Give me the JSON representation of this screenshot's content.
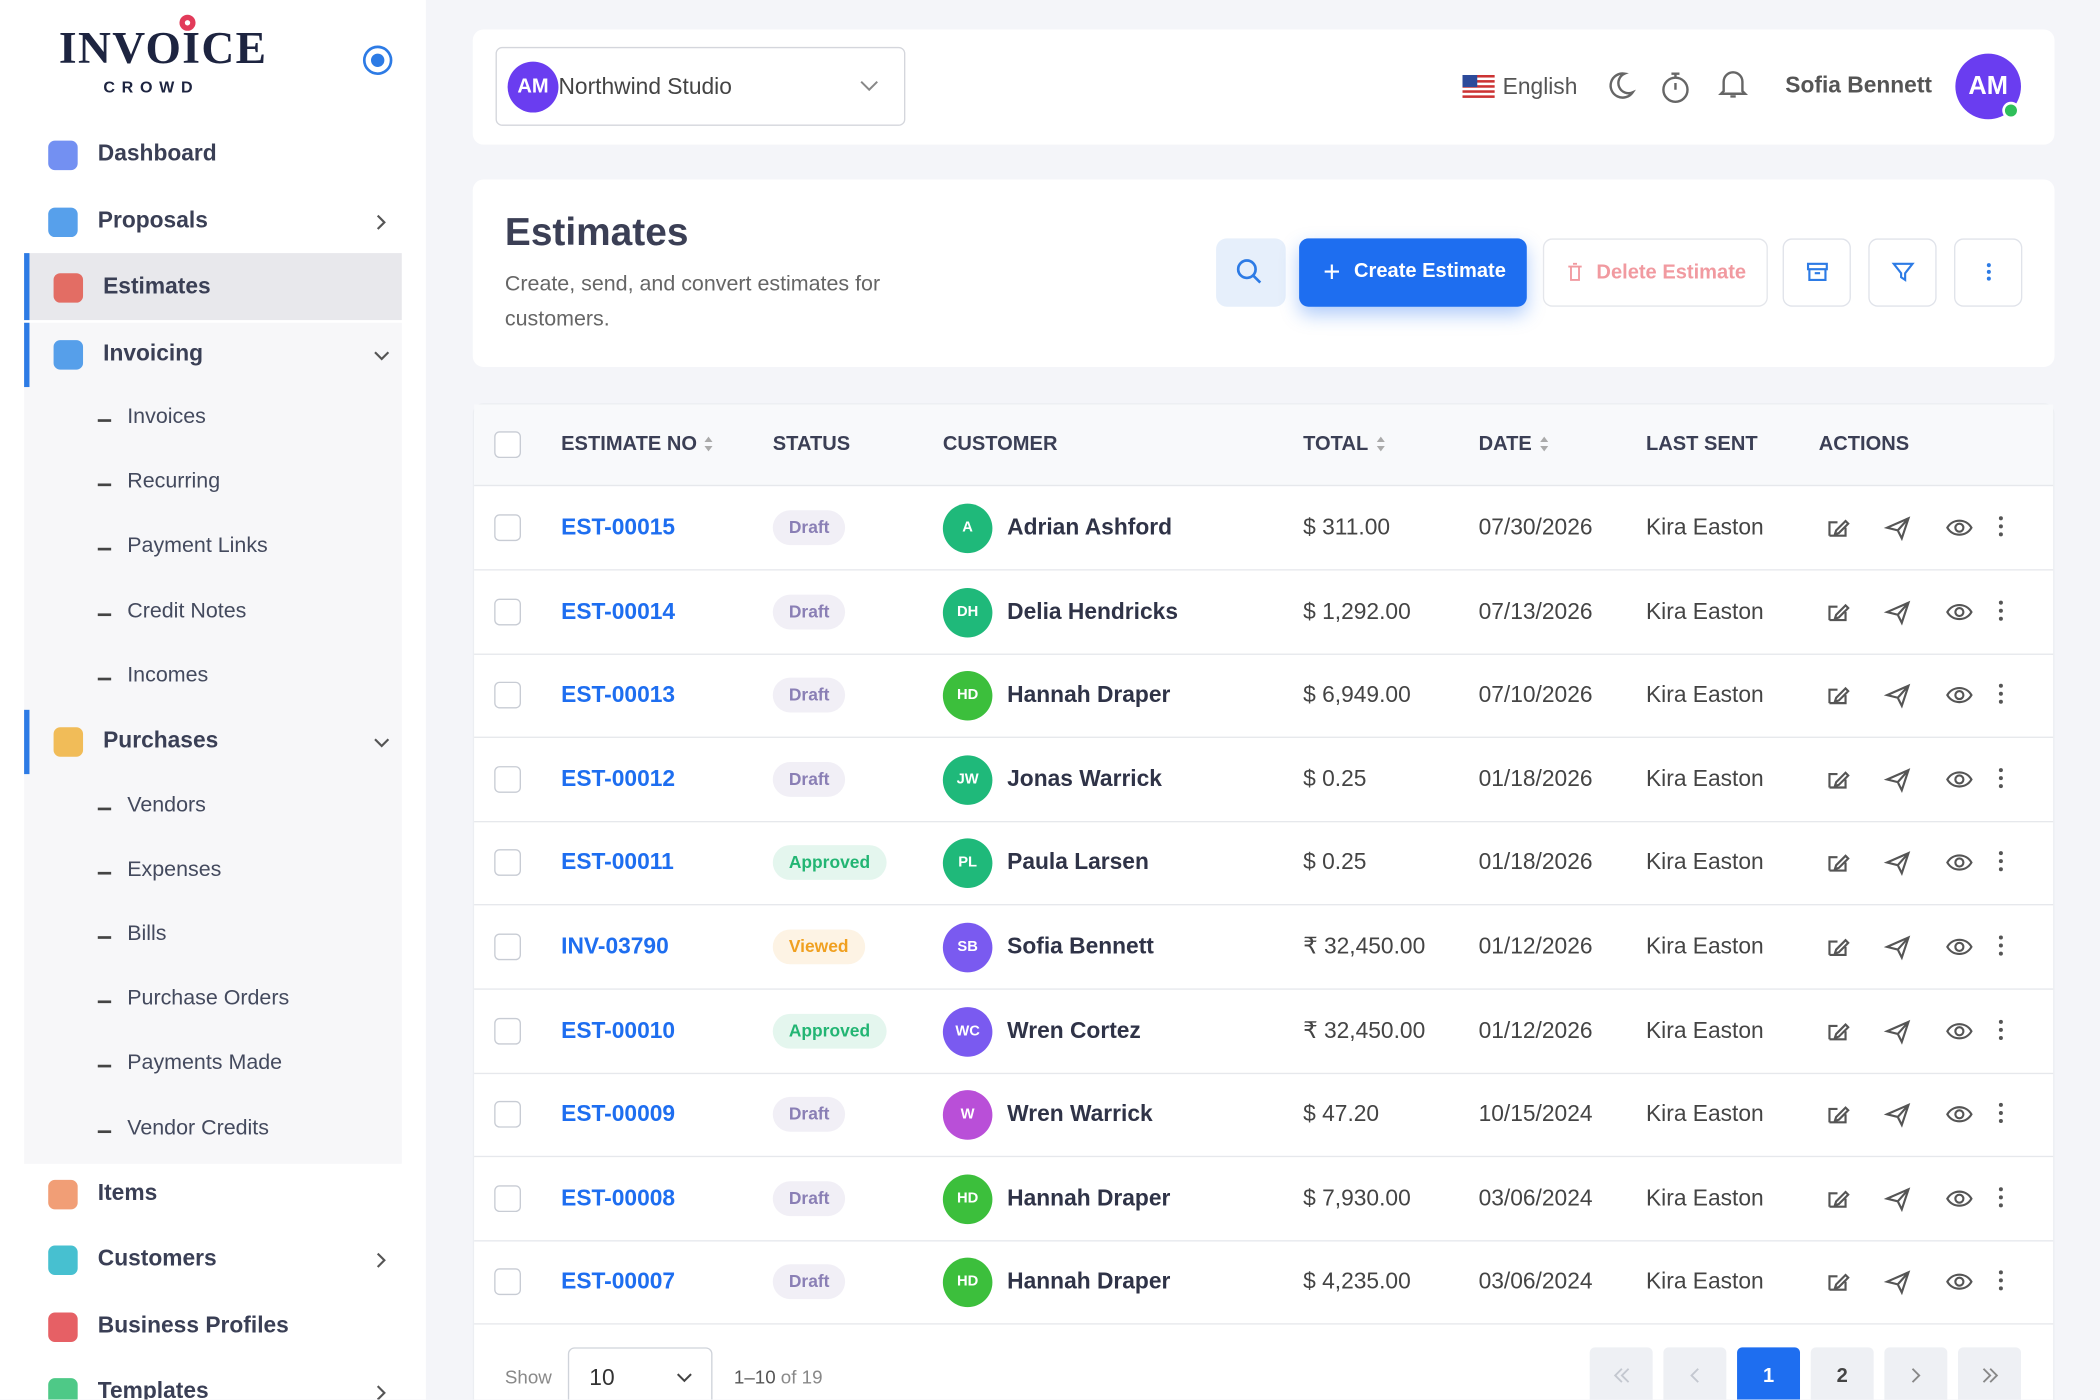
{
  "brand": {
    "name": "INVOICE",
    "tagline": "CROWD"
  },
  "sidebar": {
    "items": [
      {
        "label": "Dashboard",
        "chevron": "none"
      },
      {
        "label": "Proposals",
        "chevron": "right"
      },
      {
        "label": "Estimates",
        "chevron": "none",
        "active": true
      },
      {
        "label": "Invoicing",
        "chevron": "down",
        "children": [
          "Invoices",
          "Recurring",
          "Payment Links",
          "Credit Notes",
          "Incomes"
        ]
      },
      {
        "label": "Purchases",
        "chevron": "down",
        "children": [
          "Vendors",
          "Expenses",
          "Bills",
          "Purchase Orders",
          "Payments Made",
          "Vendor Credits"
        ]
      },
      {
        "label": "Items",
        "chevron": "none"
      },
      {
        "label": "Customers",
        "chevron": "right"
      },
      {
        "label": "Business Profiles",
        "chevron": "none"
      },
      {
        "label": "Templates",
        "chevron": "right"
      }
    ]
  },
  "header": {
    "org_initials": "AM",
    "org_name": "Northwind Studio",
    "language": "English",
    "user_name": "Sofia Bennett",
    "user_initials": "AM"
  },
  "page": {
    "title": "Estimates",
    "subtitle": "Create, send, and convert estimates for customers.",
    "create_button": "Create Estimate",
    "delete_button": "Delete Estimate"
  },
  "table": {
    "columns": [
      "ESTIMATE NO",
      "STATUS",
      "CUSTOMER",
      "TOTAL",
      "DATE",
      "LAST SENT",
      "ACTIONS"
    ],
    "rows": [
      {
        "number": "EST-00015",
        "status": "Draft",
        "status_color": "#8a7fb5",
        "initials": "A",
        "avatar_color": "#1fb97a",
        "customer": "Adrian Ashford",
        "total": "$ 311.00",
        "date": "07/30/2026",
        "last_sent": "Kira Easton"
      },
      {
        "number": "EST-00014",
        "status": "Draft",
        "status_color": "#8a7fb5",
        "initials": "DH",
        "avatar_color": "#1fb97a",
        "customer": "Delia Hendricks",
        "total": "$ 1,292.00",
        "date": "07/13/2026",
        "last_sent": "Kira Easton"
      },
      {
        "number": "EST-00013",
        "status": "Draft",
        "status_color": "#8a7fb5",
        "initials": "HD",
        "avatar_color": "#3cbf3c",
        "customer": "Hannah Draper",
        "total": "$ 6,949.00",
        "date": "07/10/2026",
        "last_sent": "Kira Easton"
      },
      {
        "number": "EST-00012",
        "status": "Draft",
        "status_color": "#8a7fb5",
        "initials": "JW",
        "avatar_color": "#1fb97a",
        "customer": "Jonas Warrick",
        "total": "$ 0.25",
        "date": "01/18/2026",
        "last_sent": "Kira Easton"
      },
      {
        "number": "EST-00011",
        "status": "Approved",
        "status_color": "#22b573",
        "initials": "PL",
        "avatar_color": "#1fb97a",
        "customer": "Paula Larsen",
        "total": "$ 0.25",
        "date": "01/18/2026",
        "last_sent": "Kira Easton"
      },
      {
        "number": "INV-03790",
        "status": "Viewed",
        "status_color": "#f0a020",
        "initials": "SB",
        "avatar_color": "#7a5af0",
        "customer": "Sofia Bennett",
        "total": "₹ 32,450.00",
        "date": "01/12/2026",
        "last_sent": "Kira Easton"
      },
      {
        "number": "EST-00010",
        "status": "Approved",
        "status_color": "#22b573",
        "initials": "WC",
        "avatar_color": "#7a5af0",
        "customer": "Wren Cortez",
        "total": "₹ 32,450.00",
        "date": "01/12/2026",
        "last_sent": "Kira Easton"
      },
      {
        "number": "EST-00009",
        "status": "Draft",
        "status_color": "#8a7fb5",
        "initials": "W",
        "avatar_color": "#b94fd8",
        "customer": "Wren Warrick",
        "total": "$ 47.20",
        "date": "10/15/2024",
        "last_sent": "Kira Easton"
      },
      {
        "number": "EST-00008",
        "status": "Draft",
        "status_color": "#8a7fb5",
        "initials": "HD",
        "avatar_color": "#3cbf3c",
        "customer": "Hannah Draper",
        "total": "$ 7,930.00",
        "date": "03/06/2024",
        "last_sent": "Kira Easton"
      },
      {
        "number": "EST-00007",
        "status": "Draft",
        "status_color": "#8a7fb5",
        "initials": "HD",
        "avatar_color": "#3cbf3c",
        "customer": "Hannah Draper",
        "total": "$ 4,235.00",
        "date": "03/06/2024",
        "last_sent": "Kira Easton"
      }
    ]
  },
  "pagination": {
    "show_label": "Show",
    "page_size": "10",
    "range": "1–10",
    "of": "of 19",
    "pages": [
      "1",
      "2"
    ],
    "current": "1"
  }
}
